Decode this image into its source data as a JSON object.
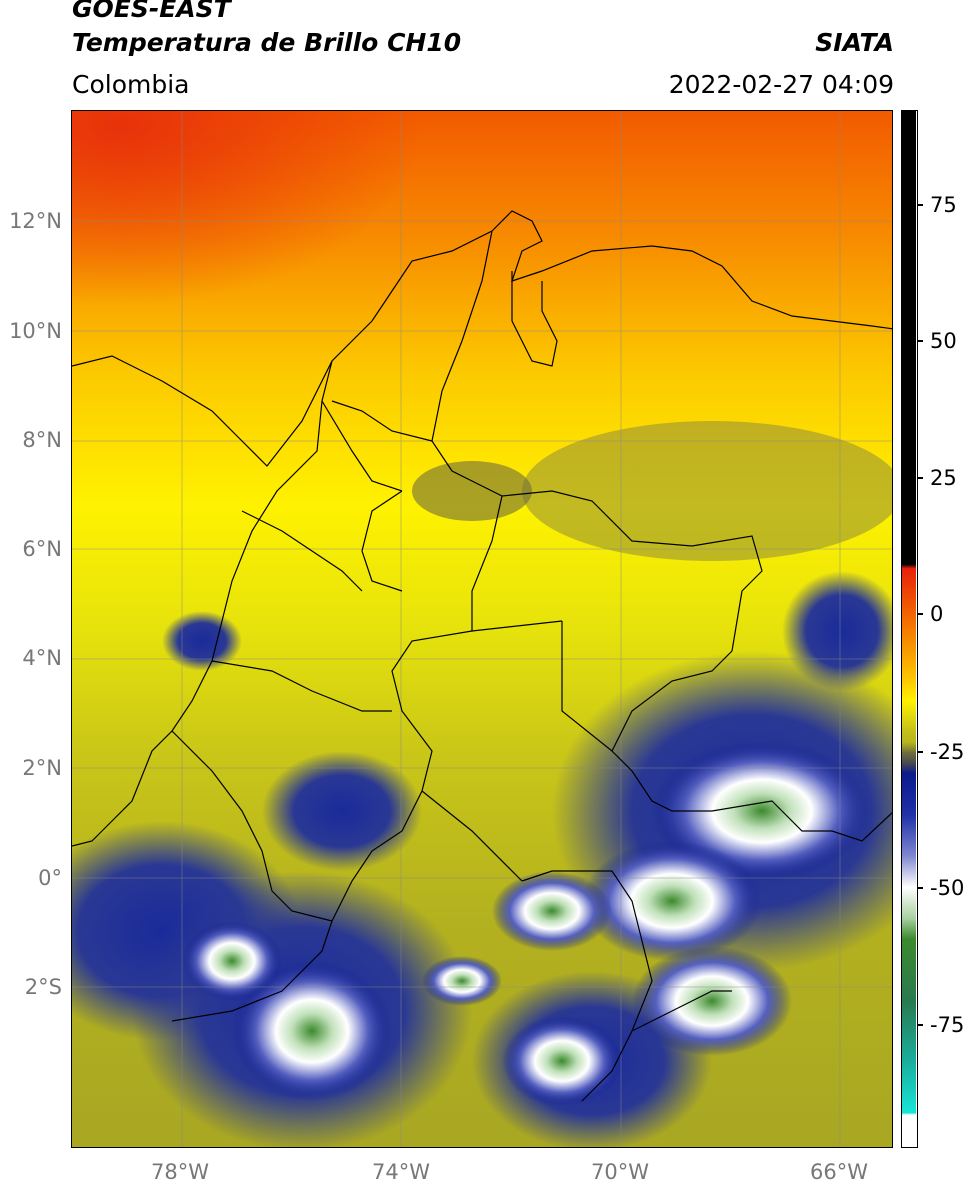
{
  "header": {
    "satellite": "GOES-EAST",
    "product": "Temperatura de Brillo CH10",
    "organization": "SIATA",
    "region": "Colombia",
    "datetime": "2022-02-27 04:09"
  },
  "axes": {
    "lat_labels": [
      "12°N",
      "10°N",
      "8°N",
      "6°N",
      "4°N",
      "2°N",
      "0°",
      "2°S"
    ],
    "lon_labels": [
      "78°W",
      "74°W",
      "70°W",
      "66°W"
    ]
  },
  "colorbar": {
    "labels": [
      "75",
      "50",
      "25",
      "0",
      "-25",
      "-50",
      "-75"
    ]
  },
  "colors": {
    "hot_black": "#000000",
    "red": "#e8200a",
    "orange": "#f57a00",
    "yellow": "#fff200",
    "olive": "#b7b61e",
    "dark_olive": "#6f6d3c",
    "navy": "#0b1a8c",
    "white": "#ffffff",
    "green": "#3c8a2e",
    "cyan": "#19e5d6"
  }
}
